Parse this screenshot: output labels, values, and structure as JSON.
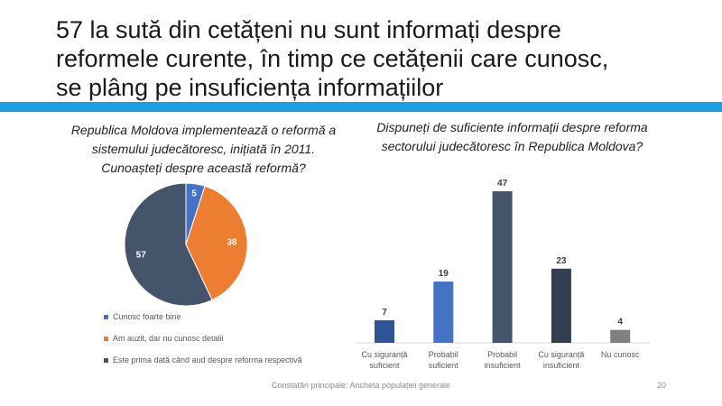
{
  "header": {
    "title": "57 la sută din cetățeni nu sunt informați despre reformele curente, în timp ce cetățenii care cunosc, se plâng pe insuficiența informațiilor"
  },
  "footer": {
    "text": "Constatări principale: Ancheta populației generale",
    "page": "20"
  },
  "chart_data": [
    {
      "type": "pie",
      "title": "Republica Moldova implementează o reformă a sistemului judecătoresc, inițiată în 2011. Cunoașteți despre această reformă?",
      "categories": [
        "Cunosc foarte bine",
        "Am auzit, dar nu cunosc detalii",
        "Este prima dată când aud despre reforma respectivă"
      ],
      "values": [
        5,
        38,
        57
      ],
      "colors": [
        "#4472c4",
        "#ed7d31",
        "#44546a"
      ]
    },
    {
      "type": "bar",
      "title": "Dispuneți de suficiente informații despre reforma sectorului judecătoresc în Republica Moldova?",
      "categories": [
        "Cu siguranță suficient",
        "Probabil suficient",
        "Probabil insuficient",
        "Cu siguranță insuficient",
        "Nu cunosc"
      ],
      "values": [
        7,
        19,
        47,
        23,
        4
      ],
      "colors": [
        "#2f5597",
        "#4472c4",
        "#44546a",
        "#333f50",
        "#808080"
      ]
    }
  ]
}
